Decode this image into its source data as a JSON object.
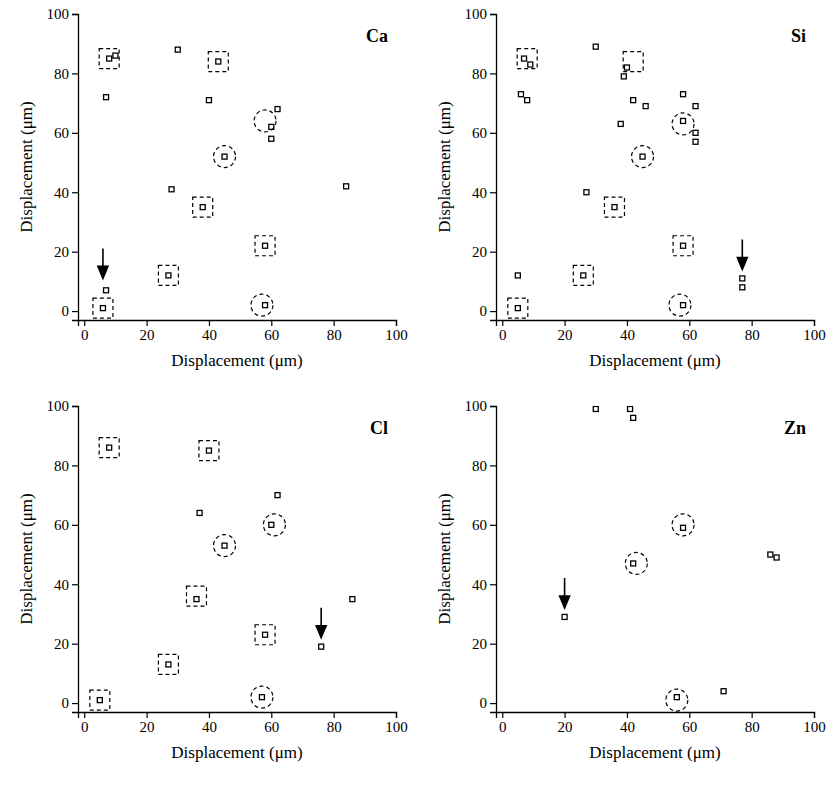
{
  "chart_data": [
    {
      "type": "scatter",
      "title": "Ca",
      "xlabel": "Displacement (μm)",
      "ylabel": "Displacement (μm)",
      "xlim": [
        -2,
        100
      ],
      "ylim": [
        -3,
        100
      ],
      "xticks": [
        0,
        20,
        40,
        60,
        80,
        100
      ],
      "yticks": [
        0,
        20,
        40,
        60,
        80,
        100
      ],
      "series": [
        {
          "color": "#000000",
          "marker": "point",
          "line_style": "solid",
          "x": [
            8,
            10,
            7,
            30,
            43,
            40,
            28,
            62,
            60,
            60,
            84,
            27,
            45,
            38,
            58,
            58,
            7,
            6
          ],
          "values": [
            85,
            86,
            72,
            88,
            84,
            71,
            41,
            68,
            62,
            58,
            42,
            12,
            52,
            35,
            22,
            2,
            7,
            1
          ]
        },
        {
          "color": "#000000",
          "marker": "square",
          "line_style": "dashed",
          "x": [
            8,
            43,
            38,
            27,
            58,
            6
          ],
          "values": [
            85,
            84,
            35,
            12,
            22,
            1
          ]
        },
        {
          "color": "#000000",
          "marker": "circle",
          "line_style": "dashed",
          "x": [
            58,
            45,
            57
          ],
          "values": [
            64,
            52,
            2
          ]
        },
        {
          "color": "#000000",
          "marker": "arrow",
          "line_style": "solid",
          "x": [
            6
          ],
          "values": [
            11
          ]
        }
      ]
    },
    {
      "type": "scatter",
      "title": "Si",
      "xlabel": "Displacement (μm)",
      "ylabel": "Displacement (μm)",
      "xlim": [
        -2,
        100
      ],
      "ylim": [
        -3,
        100
      ],
      "xticks": [
        0,
        20,
        40,
        60,
        80,
        100
      ],
      "yticks": [
        0,
        20,
        40,
        60,
        80,
        100
      ],
      "series": [
        {
          "color": "#000000",
          "marker": "point",
          "line_style": "solid",
          "x": [
            7,
            9,
            6,
            8,
            30,
            40,
            39,
            42,
            46,
            38,
            58,
            62,
            58,
            62,
            62,
            45,
            27,
            36,
            58,
            26,
            5,
            58,
            77,
            77,
            5
          ],
          "values": [
            85,
            83,
            73,
            71,
            89,
            82,
            79,
            71,
            69,
            63,
            73,
            69,
            64,
            60,
            57,
            52,
            40,
            35,
            22,
            12,
            1,
            2,
            11,
            8,
            12
          ]
        },
        {
          "color": "#000000",
          "marker": "square",
          "line_style": "dashed",
          "x": [
            8,
            42,
            36,
            26,
            58,
            5
          ],
          "values": [
            85,
            84,
            35,
            12,
            22,
            1
          ]
        },
        {
          "color": "#000000",
          "marker": "circle",
          "line_style": "dashed",
          "x": [
            58,
            45,
            57
          ],
          "values": [
            63,
            52,
            2
          ]
        },
        {
          "color": "#000000",
          "marker": "arrow",
          "line_style": "solid",
          "x": [
            77
          ],
          "values": [
            14
          ]
        }
      ]
    },
    {
      "type": "scatter",
      "title": "Cl",
      "xlabel": "Displacement (μm)",
      "ylabel": "Displacement (μm)",
      "xlim": [
        -2,
        100
      ],
      "ylim": [
        -3,
        100
      ],
      "xticks": [
        0,
        20,
        40,
        60,
        80,
        100
      ],
      "yticks": [
        0,
        20,
        40,
        60,
        80,
        100
      ],
      "series": [
        {
          "color": "#000000",
          "marker": "point",
          "line_style": "solid",
          "x": [
            8,
            40,
            37,
            62,
            60,
            45,
            36,
            58,
            27,
            57,
            5,
            76,
            86
          ],
          "values": [
            86,
            85,
            64,
            70,
            60,
            53,
            35,
            23,
            13,
            2,
            1,
            19,
            35
          ]
        },
        {
          "color": "#000000",
          "marker": "square",
          "line_style": "dashed",
          "x": [
            8,
            40,
            36,
            58,
            27,
            5
          ],
          "values": [
            86,
            85,
            36,
            23,
            13,
            1
          ]
        },
        {
          "color": "#000000",
          "marker": "circle",
          "line_style": "dashed",
          "x": [
            61,
            45,
            57
          ],
          "values": [
            60,
            53,
            2
          ]
        },
        {
          "color": "#000000",
          "marker": "arrow",
          "line_style": "solid",
          "x": [
            76
          ],
          "values": [
            22
          ]
        }
      ]
    },
    {
      "type": "scatter",
      "title": "Zn",
      "xlabel": "Displacement (μm)",
      "ylabel": "Displacement (μm)",
      "xlim": [
        -2,
        100
      ],
      "ylim": [
        -3,
        100
      ],
      "xticks": [
        0,
        20,
        40,
        60,
        80,
        100
      ],
      "yticks": [
        0,
        20,
        40,
        60,
        80,
        100
      ],
      "series": [
        {
          "color": "#000000",
          "marker": "point",
          "line_style": "solid",
          "x": [
            30,
            41,
            42,
            42,
            58,
            86,
            88,
            20,
            56,
            71
          ],
          "values": [
            99,
            99,
            96,
            47,
            59,
            50,
            49,
            29,
            2,
            4
          ]
        },
        {
          "color": "#000000",
          "marker": "circle",
          "line_style": "dashed",
          "x": [
            58,
            43,
            56
          ],
          "values": [
            60,
            47,
            1
          ]
        },
        {
          "color": "#000000",
          "marker": "arrow",
          "line_style": "solid",
          "x": [
            20
          ],
          "values": [
            32
          ]
        }
      ]
    }
  ]
}
